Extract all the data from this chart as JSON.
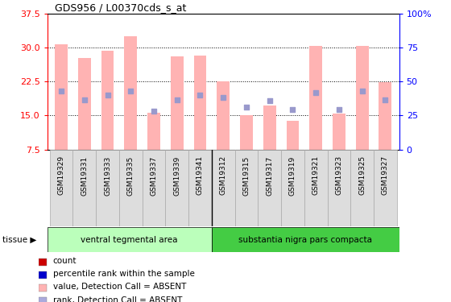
{
  "title": "GDS956 / L00370cds_s_at",
  "samples": [
    "GSM19329",
    "GSM19331",
    "GSM19333",
    "GSM19335",
    "GSM19337",
    "GSM19339",
    "GSM19341",
    "GSM19312",
    "GSM19315",
    "GSM19317",
    "GSM19319",
    "GSM19321",
    "GSM19323",
    "GSM19325",
    "GSM19327"
  ],
  "bar_values": [
    30.8,
    27.7,
    29.3,
    32.5,
    15.7,
    28.0,
    28.3,
    22.5,
    15.0,
    17.2,
    13.8,
    30.3,
    15.5,
    30.3,
    22.3
  ],
  "dot_values": [
    20.5,
    18.5,
    19.5,
    20.5,
    16.0,
    18.5,
    19.5,
    19.0,
    16.8,
    18.3,
    16.3,
    20.0,
    16.3,
    20.5,
    18.5
  ],
  "bar_color": "#ffb3b3",
  "dot_color": "#9999cc",
  "group1_label": "ventral tegmental area",
  "group2_label": "substantia nigra pars compacta",
  "group1_count": 7,
  "group2_count": 8,
  "group1_color": "#bbffbb",
  "group2_color": "#44cc44",
  "ylim_left": [
    7.5,
    37.5
  ],
  "ylim_right": [
    0,
    100
  ],
  "yticks_left": [
    7.5,
    15.0,
    22.5,
    30.0,
    37.5
  ],
  "yticks_right": [
    0,
    25,
    50,
    75,
    100
  ],
  "legend_colors": [
    "#cc0000",
    "#0000cc",
    "#ffb3b3",
    "#aaaadd"
  ],
  "legend_labels": [
    "count",
    "percentile rank within the sample",
    "value, Detection Call = ABSENT",
    "rank, Detection Call = ABSENT"
  ]
}
